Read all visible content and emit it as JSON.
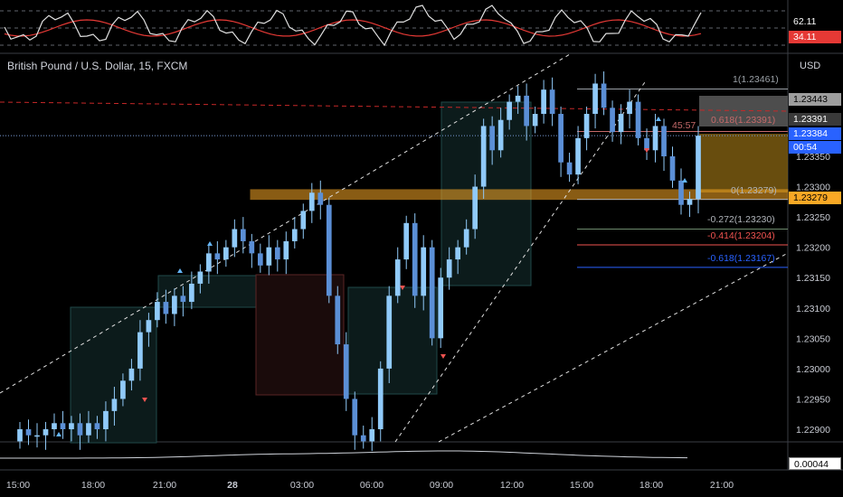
{
  "window": {
    "title": "British Pound / U.S. Dollar, 15, FXCM",
    "currency": "USD"
  },
  "oscillator": {
    "value_a": "62.11",
    "value_b": "34.11"
  },
  "volume_indicator": {
    "value": "0.00044"
  },
  "price_badges": {
    "level_high": "1.23443",
    "level_fib618": "1.23391",
    "last_price": "1.23384",
    "countdown": "00:54",
    "level_fib0": "1.23279"
  },
  "fib_labels": {
    "l1": "1(1.23461)",
    "l618": "0.618(1.23391)",
    "l0": "0(1.23279)",
    "l272": "-0.272(1.23230)",
    "l414": "-0.414(1.23204)",
    "l618n": "-0.618(1.23167)"
  },
  "overlay_text": {
    "timer": "45:57"
  },
  "colors": {
    "background": "#000000",
    "candle": "#90caf9",
    "candle_dark": "#5b8fd6",
    "down_marker": "#ef5350",
    "up_marker": "#64b5f6",
    "zone": "#f9a825",
    "rsi_line": "#e0e0e0",
    "rsi_signal": "#e53935"
  },
  "chart_data": {
    "type": "candlestick",
    "symbol": "British Pound / U.S. Dollar",
    "interval": "15",
    "source": "FXCM",
    "x_tick_labels": [
      "15:00",
      "18:00",
      "21:00",
      "28",
      "03:00",
      "06:00",
      "09:00",
      "12:00",
      "15:00",
      "18:00",
      "21:00"
    ],
    "y_tick_labels": [
      "1.23350",
      "1.23300",
      "1.23250",
      "1.23200",
      "1.23150",
      "1.23100",
      "1.23050",
      "1.23000",
      "1.22950",
      "1.22900"
    ],
    "ylim": [
      1.2288,
      1.2349
    ],
    "closes": [
      1.229,
      1.2289,
      1.2289,
      1.229,
      1.2291,
      1.229,
      1.2291,
      1.2289,
      1.2291,
      1.229,
      1.2293,
      1.2295,
      1.2298,
      1.23,
      1.2306,
      1.2308,
      1.2311,
      1.2309,
      1.2312,
      1.2311,
      1.2314,
      1.2316,
      1.2319,
      1.2318,
      1.232,
      1.2323,
      1.2321,
      1.2319,
      1.2317,
      1.232,
      1.2318,
      1.2321,
      1.2323,
      1.2326,
      1.2329,
      1.2327,
      1.2312,
      1.2304,
      1.2295,
      1.2289,
      1.2288,
      1.229,
      1.23,
      1.2312,
      1.2318,
      1.2324,
      1.2312,
      1.232,
      1.2305,
      1.2315,
      1.2318,
      1.232,
      1.2323,
      1.233,
      1.234,
      1.2336,
      1.2341,
      1.2344,
      1.2345,
      1.234,
      1.2342,
      1.2346,
      1.2342,
      1.2334,
      1.2332,
      1.2338,
      1.2342,
      1.2347,
      1.2343,
      1.2339,
      1.2342,
      1.2344,
      1.2338,
      1.2336,
      1.234,
      1.2335,
      1.2331,
      1.2327,
      1.2328,
      1.23384
    ],
    "annotations": {
      "range_zone": [
        1.23279,
        1.23295
      ],
      "fib_levels": [
        {
          "ratio": "1",
          "value": 1.23461
        },
        {
          "ratio": "0.618",
          "value": 1.23391
        },
        {
          "ratio": "0",
          "value": 1.23279
        },
        {
          "ratio": "-0.272",
          "value": 1.2323
        },
        {
          "ratio": "-0.414",
          "value": 1.23204
        },
        {
          "ratio": "-0.618",
          "value": 1.23167
        }
      ]
    }
  }
}
